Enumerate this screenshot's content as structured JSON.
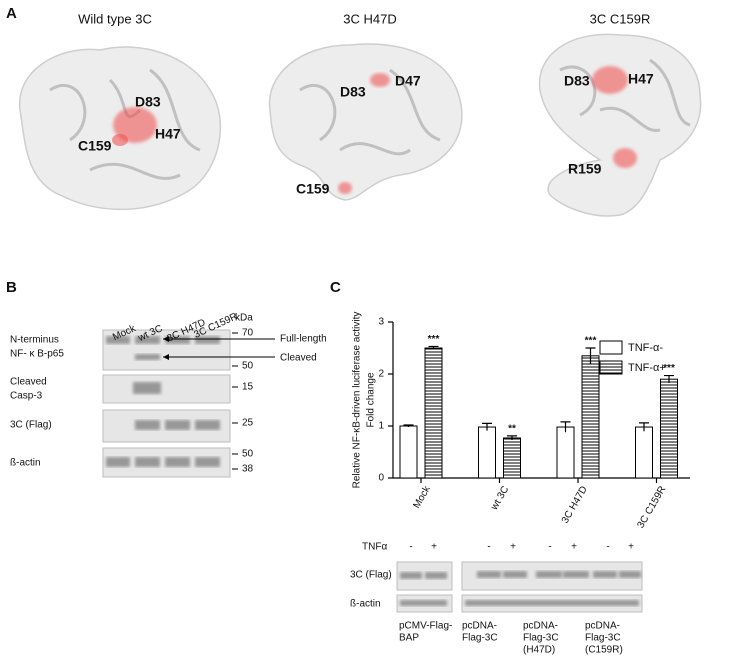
{
  "panel_a": {
    "label": "A",
    "structures": [
      {
        "title": "Wild type 3C",
        "residues": [
          "D83",
          "C159",
          "H47"
        ]
      },
      {
        "title": "3C H47D",
        "residues": [
          "D83",
          "D47",
          "C159"
        ]
      },
      {
        "title": "3C C159R",
        "residues": [
          "D83",
          "H47",
          "R159"
        ]
      }
    ]
  },
  "panel_b": {
    "label": "B",
    "lanes": [
      "Mock",
      "wt 3C",
      "3C H47D",
      "3C C159R"
    ],
    "unit": "kDa",
    "rows": [
      {
        "label": [
          "N-terminus",
          "NF- κ B-p65"
        ],
        "markers": [
          70,
          50
        ]
      },
      {
        "label": [
          "Cleaved",
          "Casp-3"
        ],
        "markers": [
          15
        ]
      },
      {
        "label": [
          "3C (Flag)"
        ],
        "markers": [
          25
        ]
      },
      {
        "label": [
          "ß-actin"
        ],
        "markers": [
          50,
          38
        ]
      }
    ],
    "arrows": [
      "Full-length",
      "Cleaved"
    ]
  },
  "panel_c": {
    "label": "C",
    "blot": {
      "treatment": "TNFα",
      "signs": [
        "-",
        "+",
        "-",
        "+",
        "-",
        "+",
        "-",
        "+"
      ],
      "rows": [
        "3C (Flag)",
        "ß-actin"
      ],
      "groups": [
        [
          "pCMV-Flag-",
          "BAP"
        ],
        [
          "pcDNA-",
          "Flag-3C"
        ],
        [
          "pcDNA-",
          "Flag-3C",
          "(H47D)"
        ],
        [
          "pcDNA-",
          "Flag-3C",
          "(C159R)"
        ]
      ]
    }
  },
  "chart_data": {
    "type": "bar",
    "y_label": [
      "Relative NF-κB-driven luciferase activity",
      "Fold change"
    ],
    "categories": [
      "Mock",
      "wt 3C",
      "3C H47D",
      "3C C159R"
    ],
    "series": [
      {
        "name": "TNF-α-",
        "color": "#ffffff",
        "values": [
          1.0,
          0.98,
          0.98,
          0.98
        ],
        "errors": [
          0.02,
          0.07,
          0.1,
          0.08
        ]
      },
      {
        "name": "TNF-α+",
        "color": "hatch",
        "values": [
          2.5,
          0.77,
          2.35,
          1.9
        ],
        "errors": [
          0.03,
          0.04,
          0.15,
          0.07
        ],
        "significance": [
          "***",
          "**",
          "***",
          "***"
        ]
      }
    ],
    "ylim": [
      0,
      3
    ],
    "yticks": [
      0,
      1,
      2,
      3
    ],
    "legend": "right"
  }
}
